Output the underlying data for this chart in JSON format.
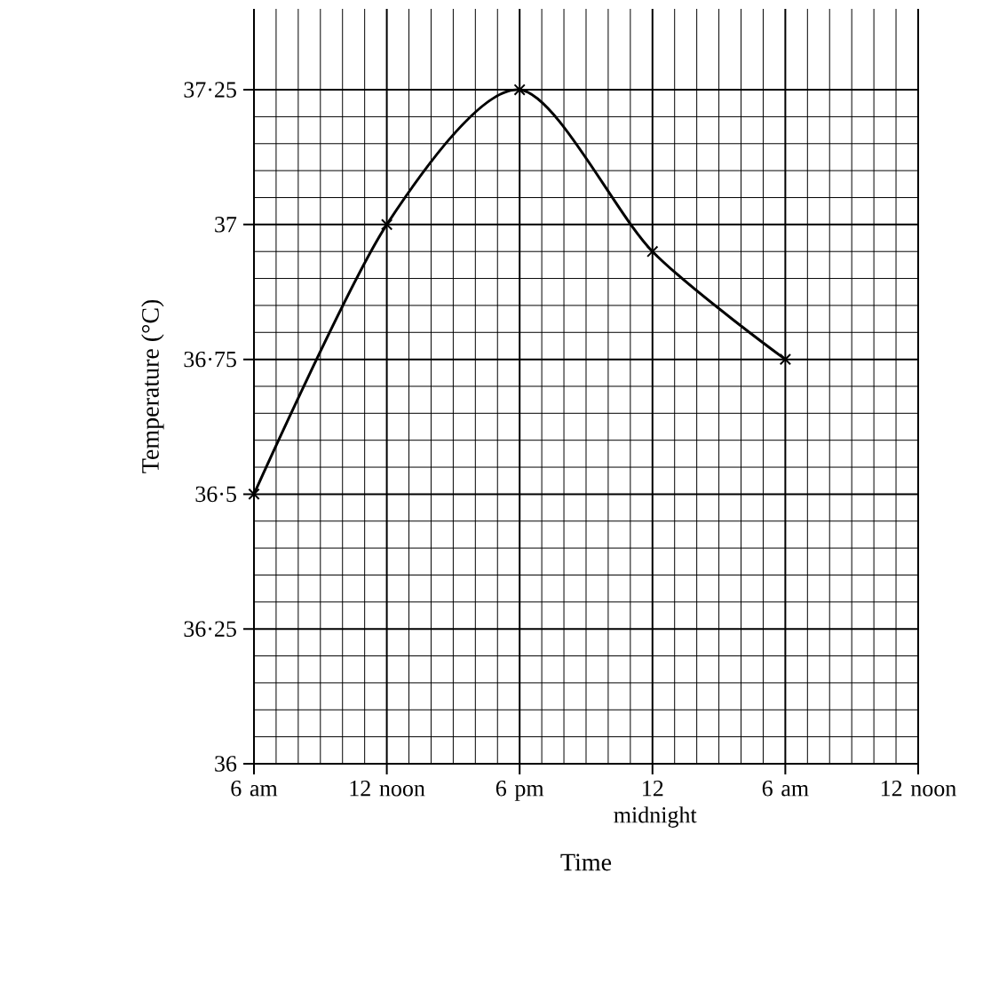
{
  "chart_data": {
    "type": "line",
    "xlabel": "Time",
    "ylabel": "Temperature (°C)",
    "categories": [
      "6 am",
      "12 noon",
      "6 pm",
      "12 midnight",
      "6 am",
      "12 noon"
    ],
    "values": [
      36.5,
      37,
      37.25,
      36.95,
      36.75,
      null
    ],
    "color": "#000000",
    "marker": "cross",
    "line_style": "solid",
    "grid": true,
    "ylim": [
      36,
      37.4
    ],
    "yticks": [
      36,
      {
        "value": 36.25,
        "label": "36·25"
      },
      {
        "value": 36.5,
        "label": "36·5"
      },
      {
        "value": 36.75,
        "label": "36·75"
      },
      37,
      {
        "value": 37.25,
        "label": "37·25"
      }
    ]
  }
}
